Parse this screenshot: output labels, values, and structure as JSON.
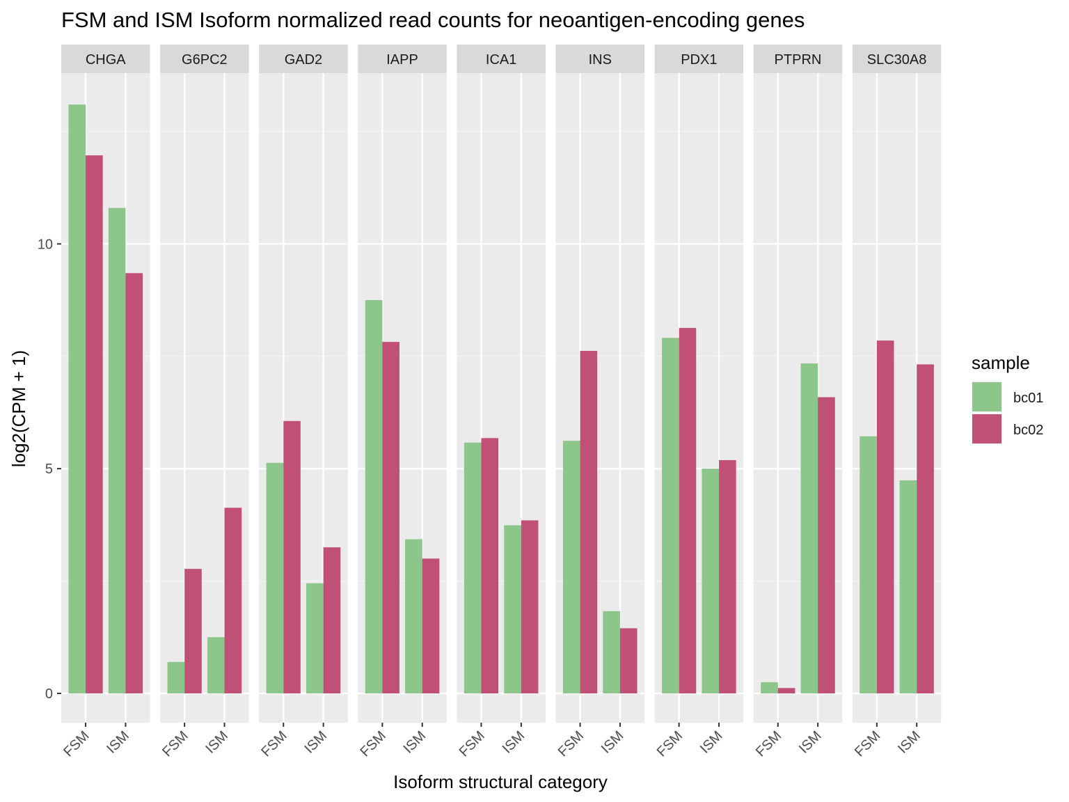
{
  "chart_data": {
    "type": "bar",
    "title": "FSM and ISM Isoform normalized read counts for neoantigen-encoding genes",
    "xlabel": "Isoform structural category",
    "ylabel": "log2(CPM + 1)",
    "ylim": [
      -0.65,
      13.8
    ],
    "yticks": [
      0,
      5,
      10
    ],
    "grid": true,
    "legend": {
      "title": "sample",
      "position": "right",
      "entries": [
        {
          "name": "bc01",
          "color": "#8CC68A"
        },
        {
          "name": "bc02",
          "color": "#C05075"
        }
      ]
    },
    "categories": [
      "FSM",
      "ISM"
    ],
    "facets": [
      {
        "name": "CHGA",
        "series": [
          {
            "name": "bc01",
            "values": [
              13.1,
              10.8
            ]
          },
          {
            "name": "bc02",
            "values": [
              11.97,
              9.35
            ]
          }
        ]
      },
      {
        "name": "G6PC2",
        "series": [
          {
            "name": "bc01",
            "values": [
              0.7,
              1.25
            ]
          },
          {
            "name": "bc02",
            "values": [
              2.77,
              4.13
            ]
          }
        ]
      },
      {
        "name": "GAD2",
        "series": [
          {
            "name": "bc01",
            "values": [
              5.13,
              2.45
            ]
          },
          {
            "name": "bc02",
            "values": [
              6.06,
              3.25
            ]
          }
        ]
      },
      {
        "name": "IAPP",
        "series": [
          {
            "name": "bc01",
            "values": [
              8.75,
              3.43
            ]
          },
          {
            "name": "bc02",
            "values": [
              7.82,
              3.0
            ]
          }
        ]
      },
      {
        "name": "ICA1",
        "series": [
          {
            "name": "bc01",
            "values": [
              5.58,
              3.74
            ]
          },
          {
            "name": "bc02",
            "values": [
              5.68,
              3.85
            ]
          }
        ]
      },
      {
        "name": "INS",
        "series": [
          {
            "name": "bc01",
            "values": [
              5.62,
              1.83
            ]
          },
          {
            "name": "bc02",
            "values": [
              7.62,
              1.45
            ]
          }
        ]
      },
      {
        "name": "PDX1",
        "series": [
          {
            "name": "bc01",
            "values": [
              7.91,
              5.0
            ]
          },
          {
            "name": "bc02",
            "values": [
              8.13,
              5.19
            ]
          }
        ]
      },
      {
        "name": "PTPRN",
        "series": [
          {
            "name": "bc01",
            "values": [
              0.25,
              7.34
            ]
          },
          {
            "name": "bc02",
            "values": [
              0.12,
              6.59
            ]
          }
        ]
      },
      {
        "name": "SLC30A8",
        "series": [
          {
            "name": "bc01",
            "values": [
              5.72,
              4.74
            ]
          },
          {
            "name": "bc02",
            "values": [
              7.85,
              7.32
            ]
          }
        ]
      }
    ]
  }
}
